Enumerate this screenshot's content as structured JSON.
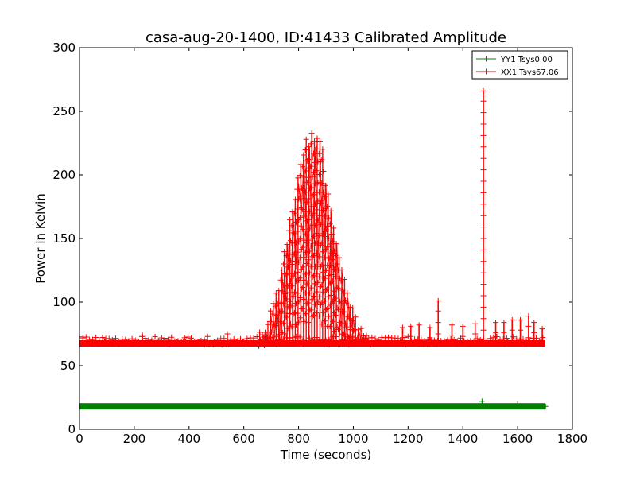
{
  "chart_data": {
    "type": "line",
    "title": "casa-aug-20-1400, ID:41433 Calibrated Amplitude",
    "xlabel": "Time (seconds)",
    "ylabel": "Power in Kelvin",
    "xlim": [
      0,
      1800
    ],
    "ylim": [
      0,
      300
    ],
    "xticks": [
      0,
      200,
      400,
      600,
      800,
      1000,
      1200,
      1400,
      1600,
      1800
    ],
    "yticks": [
      0,
      50,
      100,
      150,
      200,
      250,
      300
    ],
    "grid": false,
    "legend_position": "top-right",
    "series": [
      {
        "name": "YY1 Tsys0.00",
        "color": "#008000",
        "baseline": 18,
        "x_range": [
          0,
          1700
        ],
        "outliers": [
          [
            1470,
            22
          ],
          [
            1600,
            20
          ]
        ]
      },
      {
        "name": "XX1 Tsys67.06",
        "color": "#ff0000",
        "x_range": [
          0,
          1700
        ],
        "baseline": 67,
        "low": 65,
        "bump": {
          "center": 850,
          "peak": 235,
          "width": 110
        },
        "spikes": [
          [
            230,
            74
          ],
          [
            540,
            75
          ],
          [
            1180,
            80
          ],
          [
            1210,
            81
          ],
          [
            1240,
            82
          ],
          [
            1280,
            80
          ],
          [
            1310,
            101
          ],
          [
            1360,
            82
          ],
          [
            1400,
            81
          ],
          [
            1445,
            83
          ],
          [
            1475,
            266
          ],
          [
            1520,
            84
          ],
          [
            1550,
            84
          ],
          [
            1580,
            86
          ],
          [
            1610,
            86
          ],
          [
            1640,
            89
          ],
          [
            1660,
            84
          ],
          [
            1690,
            79
          ]
        ]
      }
    ]
  }
}
